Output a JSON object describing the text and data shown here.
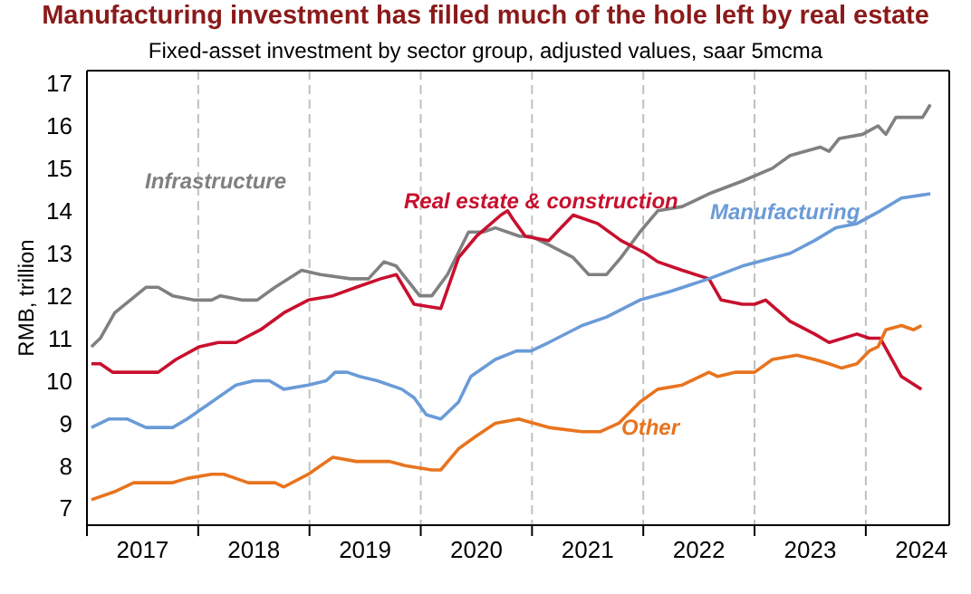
{
  "chart_data": {
    "type": "line",
    "title": "Manufacturing investment has filled much of the hole left by real estate",
    "subtitle": "Fixed-asset investment by sector group, adjusted values, saar 5mcma",
    "ylabel": "RMB, trillion",
    "xlim": [
      2017,
      2024.75
    ],
    "xticks": [
      {
        "value": 2017,
        "label": null
      },
      {
        "value": 2017.5,
        "label": "2017"
      },
      {
        "value": 2018,
        "label": null
      },
      {
        "value": 2018.5,
        "label": "2018"
      },
      {
        "value": 2019,
        "label": null
      },
      {
        "value": 2019.5,
        "label": "2019"
      },
      {
        "value": 2020,
        "label": null
      },
      {
        "value": 2020.5,
        "label": "2020"
      },
      {
        "value": 2021,
        "label": null
      },
      {
        "value": 2021.5,
        "label": "2021"
      },
      {
        "value": 2022,
        "label": null
      },
      {
        "value": 2022.5,
        "label": "2022"
      },
      {
        "value": 2023,
        "label": null
      },
      {
        "value": 2023.5,
        "label": "2023"
      },
      {
        "value": 2024,
        "label": null
      },
      {
        "value": 2024.5,
        "label": "2024"
      }
    ],
    "ylim": [
      6.6,
      17.3
    ],
    "yticks": [
      7,
      8,
      9,
      10,
      11,
      12,
      13,
      14,
      15,
      16,
      17
    ],
    "grid": true,
    "marker": "none",
    "line_style": "solid",
    "series": [
      {
        "name": "Infrastructure",
        "color": "#808080",
        "x": [
          2017.04,
          2017.12,
          2017.25,
          2017.39,
          2017.53,
          2017.64,
          2017.77,
          2017.96,
          2018.12,
          2018.2,
          2018.39,
          2018.53,
          2018.69,
          2018.93,
          2019.1,
          2019.37,
          2019.53,
          2019.67,
          2019.78,
          2019.99,
          2020.1,
          2020.24,
          2020.43,
          2020.56,
          2020.67,
          2020.89,
          2020.99,
          2021.15,
          2021.37,
          2021.51,
          2021.67,
          2021.8,
          2021.97,
          2022.13,
          2022.35,
          2022.59,
          2022.89,
          2023.16,
          2023.32,
          2023.59,
          2023.67,
          2023.76,
          2023.97,
          2024.11,
          2024.18,
          2024.27,
          2024.43,
          2024.51,
          2024.58
        ],
        "values": [
          10.8,
          11.0,
          11.6,
          11.9,
          12.2,
          12.2,
          12.0,
          11.9,
          11.9,
          12.0,
          11.9,
          11.9,
          12.2,
          12.6,
          12.5,
          12.4,
          12.4,
          12.8,
          12.7,
          12.0,
          12.0,
          12.5,
          13.5,
          13.5,
          13.6,
          13.4,
          13.4,
          13.2,
          12.9,
          12.5,
          12.5,
          12.9,
          13.5,
          14.0,
          14.1,
          14.4,
          14.7,
          15.0,
          15.3,
          15.5,
          15.4,
          15.7,
          15.8,
          16.0,
          15.8,
          16.2,
          16.2,
          16.2,
          16.5
        ]
      },
      {
        "name": "Real estate & construction",
        "color": "#c8102e",
        "x": [
          2017.04,
          2017.12,
          2017.23,
          2017.55,
          2017.64,
          2017.8,
          2018.01,
          2018.18,
          2018.34,
          2018.56,
          2018.77,
          2018.99,
          2019.21,
          2019.42,
          2019.64,
          2019.78,
          2019.94,
          2020.18,
          2020.34,
          2020.5,
          2020.72,
          2020.78,
          2020.83,
          2020.94,
          2021.15,
          2021.37,
          2021.59,
          2021.8,
          2022.02,
          2022.13,
          2022.35,
          2022.59,
          2022.7,
          2022.89,
          2023.0,
          2023.1,
          2023.32,
          2023.54,
          2023.67,
          2023.92,
          2024.03,
          2024.13,
          2024.32,
          2024.5
        ],
        "values": [
          10.4,
          10.4,
          10.2,
          10.2,
          10.2,
          10.5,
          10.8,
          10.9,
          10.9,
          11.2,
          11.6,
          11.9,
          12.0,
          12.2,
          12.4,
          12.5,
          11.8,
          11.7,
          12.9,
          13.4,
          13.9,
          14.0,
          13.8,
          13.4,
          13.3,
          13.9,
          13.7,
          13.3,
          13.0,
          12.8,
          12.6,
          12.4,
          11.9,
          11.8,
          11.8,
          11.9,
          11.4,
          11.1,
          10.9,
          11.1,
          11.0,
          11.0,
          10.1,
          9.8
        ]
      },
      {
        "name": "Manufacturing",
        "color": "#6a9bd8",
        "x": [
          2017.04,
          2017.2,
          2017.36,
          2017.53,
          2017.77,
          2017.9,
          2018.12,
          2018.34,
          2018.5,
          2018.64,
          2018.77,
          2018.99,
          2019.15,
          2019.23,
          2019.34,
          2019.45,
          2019.61,
          2019.83,
          2019.94,
          2020.05,
          2020.18,
          2020.34,
          2020.45,
          2020.67,
          2020.86,
          2020.99,
          2021.15,
          2021.45,
          2021.67,
          2021.97,
          2022.24,
          2022.59,
          2022.89,
          2023.32,
          2023.54,
          2023.73,
          2023.92,
          2024.13,
          2024.32,
          2024.58
        ],
        "values": [
          8.9,
          9.1,
          9.1,
          8.9,
          8.9,
          9.1,
          9.5,
          9.9,
          10.0,
          10.0,
          9.8,
          9.9,
          10.0,
          10.2,
          10.2,
          10.1,
          10.0,
          9.8,
          9.6,
          9.2,
          9.1,
          9.5,
          10.1,
          10.5,
          10.7,
          10.7,
          10.9,
          11.3,
          11.5,
          11.9,
          12.1,
          12.4,
          12.7,
          13.0,
          13.3,
          13.6,
          13.7,
          14.0,
          14.3,
          14.4
        ]
      },
      {
        "name": "Other",
        "color": "#e8741e",
        "x": [
          2017.04,
          2017.26,
          2017.42,
          2017.63,
          2017.77,
          2017.9,
          2018.12,
          2018.23,
          2018.45,
          2018.69,
          2018.77,
          2018.99,
          2019.1,
          2019.21,
          2019.42,
          2019.53,
          2019.72,
          2019.86,
          2020.1,
          2020.18,
          2020.34,
          2020.5,
          2020.67,
          2020.88,
          2021.15,
          2021.45,
          2021.61,
          2021.78,
          2021.97,
          2022.13,
          2022.35,
          2022.59,
          2022.67,
          2022.83,
          2023.0,
          2023.16,
          2023.38,
          2023.54,
          2023.67,
          2023.78,
          2023.92,
          2024.03,
          2024.11,
          2024.18,
          2024.32,
          2024.43,
          2024.5
        ],
        "values": [
          7.2,
          7.4,
          7.6,
          7.6,
          7.6,
          7.7,
          7.8,
          7.8,
          7.6,
          7.6,
          7.5,
          7.8,
          8.0,
          8.2,
          8.1,
          8.1,
          8.1,
          8.0,
          7.9,
          7.9,
          8.4,
          8.7,
          9.0,
          9.1,
          8.9,
          8.8,
          8.8,
          9.0,
          9.5,
          9.8,
          9.9,
          10.2,
          10.1,
          10.2,
          10.2,
          10.5,
          10.6,
          10.5,
          10.4,
          10.3,
          10.4,
          10.7,
          10.8,
          11.2,
          11.3,
          11.2,
          11.3
        ]
      }
    ]
  }
}
